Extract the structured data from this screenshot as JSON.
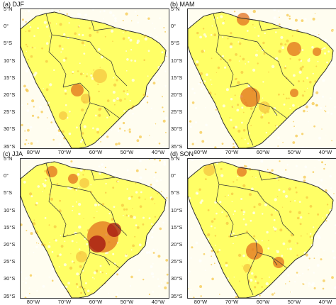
{
  "panels": [
    {
      "id": "a",
      "title": "(a) DJF",
      "lat_labels": [
        "5°N",
        "0°",
        "5°S",
        "10°S",
        "15°S",
        "20°S",
        "25°S",
        "30°S",
        "35°S"
      ],
      "lon_labels": [
        "80°W",
        "70°W",
        "60°W",
        "50°W",
        "40°W"
      ]
    },
    {
      "id": "b",
      "title": "(b) MAM",
      "lat_labels": [
        "5°N",
        "0°",
        "5°S",
        "10°S",
        "15°S",
        "20°S",
        "25°S",
        "30°S",
        "35°S"
      ],
      "lon_labels": [
        "80°W",
        "70°W",
        "60°W",
        "50°W",
        "40°W"
      ]
    },
    {
      "id": "c",
      "title": "(c) JJA",
      "lat_labels": [
        "5°N",
        "0°",
        "5°S",
        "10°S",
        "15°S",
        "20°S",
        "25°S",
        "30°S",
        "35°S"
      ],
      "lon_labels": [
        "80°W",
        "70°W",
        "60°W",
        "50°W",
        "40°W"
      ]
    },
    {
      "id": "d",
      "title": "(d) SON",
      "lat_labels": [
        "5°N",
        "0°",
        "5°S",
        "10°S",
        "15°S",
        "20°S",
        "25°S",
        "30°S",
        "35°S"
      ],
      "lon_labels": [
        "80°W",
        "70°W",
        "60°W",
        "50°W",
        "40°W"
      ]
    }
  ],
  "colors": {
    "background": "#fffdf0",
    "low": "#ffff66",
    "mid": "#f5c542",
    "high": "#e2701f",
    "peak": "#a01010",
    "border": "#333333"
  }
}
